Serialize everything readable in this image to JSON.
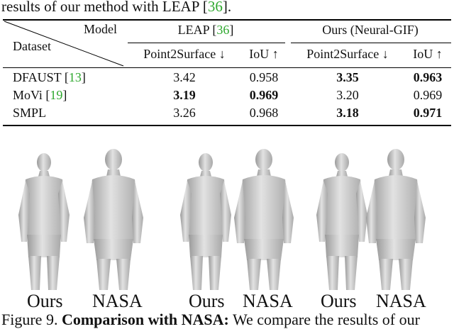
{
  "intro_text": {
    "prefix": "results of our method with LEAP [",
    "ref": "36",
    "suffix": "]."
  },
  "table": {
    "header": {
      "model_label": "Model",
      "dataset_label": "Dataset",
      "groups": [
        {
          "name_prefix": "LEAP [",
          "name_ref": "36",
          "name_suffix": "]"
        },
        {
          "name": "Ours (Neural-GIF)"
        }
      ],
      "metrics": [
        "Point2Surface ↓",
        "IoU ↑",
        "Point2Surface ↓",
        "IoU ↑"
      ]
    },
    "rows": [
      {
        "dataset": "DFAUST [",
        "ref": "13",
        "suffix": "]",
        "values": [
          "3.42",
          "0.958",
          "3.35",
          "0.963"
        ]
      },
      {
        "dataset": "MoVi [",
        "ref": "19",
        "suffix": "]",
        "values": [
          "3.19",
          "0.969",
          "3.20",
          "0.969"
        ]
      },
      {
        "dataset": "SMPL",
        "ref": "",
        "suffix": "",
        "values": [
          "3.26",
          "0.968",
          "3.18",
          "0.971"
        ]
      }
    ]
  },
  "figure": {
    "labels": [
      "Ours",
      "NASA",
      "Ours",
      "NASA",
      "Ours",
      "NASA"
    ]
  },
  "caption": {
    "prefix": "Figure 9. ",
    "bold": "Comparison with NASA:",
    "rest": " We compare the results of our"
  },
  "colors": {
    "ref": "#2ea82e",
    "body_mesh": "#d3d3d3",
    "mesh_shadow": "#9a9a9a"
  }
}
